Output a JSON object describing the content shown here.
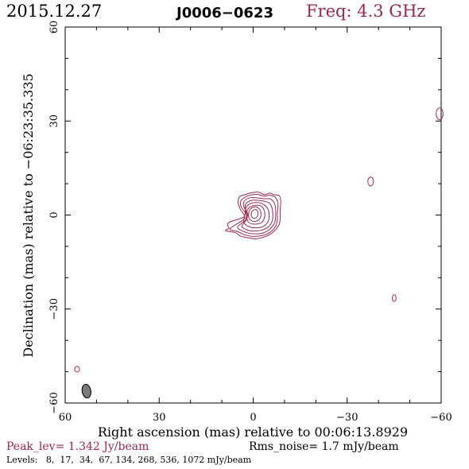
{
  "header": {
    "date": "2015.12.27",
    "source": "J0006−0623",
    "freq": "Freq: 4.3 GHz"
  },
  "footer": {
    "peak": "Peak_lev=  1.342 Jy/beam",
    "rms": "Rms_noise=  1.7 mJy/beam",
    "levels": "Levels:   8,  17,  34,  67, 134, 268, 536, 1072 mJy/beam"
  },
  "colors": {
    "contour": "#a0284a",
    "beam": "#7a7a7a",
    "text": "#000000"
  },
  "chart_data": {
    "type": "contour",
    "xlabel": "Right ascension (mas) relative to 00:06:13.8929",
    "ylabel": "Declination (mas) relative to −06:23:35.335",
    "xlim": [
      60,
      -60
    ],
    "ylim": [
      -60,
      60
    ],
    "xticks": [
      {
        "value": 60,
        "label": "60"
      },
      {
        "value": 30,
        "label": "30"
      },
      {
        "value": 0,
        "label": "0"
      },
      {
        "value": -30,
        "label": "−30"
      },
      {
        "value": -60,
        "label": "−60"
      }
    ],
    "yticks": [
      {
        "value": -60,
        "label": "−60"
      },
      {
        "value": -30,
        "label": "−30"
      },
      {
        "value": 0,
        "label": "0"
      },
      {
        "value": 30,
        "label": "30"
      },
      {
        "value": 60,
        "label": "60"
      }
    ],
    "levels_mJy": [
      8,
      17,
      34,
      67,
      134,
      268,
      536,
      1072
    ],
    "main_component": {
      "center": [
        -0.5,
        0.8
      ],
      "contours": [
        {
          "level": 8,
          "points": [
            [
              8.8,
              -5
            ],
            [
              7.7,
              -4.2
            ],
            [
              8.2,
              -3.2
            ],
            [
              7.6,
              -2.3
            ],
            [
              4.4,
              -1.2
            ],
            [
              2.8,
              -0.3
            ],
            [
              4.1,
              1.8
            ],
            [
              4.8,
              3.9
            ],
            [
              4.3,
              5.9
            ],
            [
              2.6,
              6.5
            ],
            [
              0.6,
              7.1
            ],
            [
              -1.7,
              7.3
            ],
            [
              -3.6,
              6.5
            ],
            [
              -5.3,
              7.0
            ],
            [
              -6.6,
              6.5
            ],
            [
              -8.3,
              6.2
            ],
            [
              -8.8,
              4.4
            ],
            [
              -8.6,
              1.2
            ],
            [
              -8.6,
              -1.2
            ],
            [
              -8.2,
              -3.2
            ],
            [
              -6.3,
              -5.5
            ],
            [
              -4.1,
              -6.8
            ],
            [
              -0.9,
              -7.6
            ],
            [
              1.4,
              -7.3
            ],
            [
              4.1,
              -6.7
            ],
            [
              5.7,
              -5.6
            ]
          ]
        },
        {
          "level": 17,
          "points": [
            [
              7.4,
              -4.4
            ],
            [
              3.4,
              -1.7
            ],
            [
              2.0,
              -0.1
            ],
            [
              3.6,
              2.2
            ],
            [
              4.1,
              4.0
            ],
            [
              3.1,
              5.4
            ],
            [
              1.0,
              6.3
            ],
            [
              -1.3,
              6.6
            ],
            [
              -3.5,
              6.0
            ],
            [
              -5.2,
              6.3
            ],
            [
              -7.1,
              5.6
            ],
            [
              -7.9,
              3.5
            ],
            [
              -7.7,
              0.5
            ],
            [
              -7.7,
              -1.6
            ],
            [
              -7.1,
              -3.7
            ],
            [
              -5.1,
              -5.7
            ],
            [
              -2.6,
              -6.6
            ],
            [
              0.3,
              -6.8
            ],
            [
              2.7,
              -6.3
            ],
            [
              4.9,
              -5.3
            ]
          ]
        },
        {
          "level": 34,
          "points": [
            [
              5.0,
              -3.9
            ],
            [
              2.4,
              -1.6
            ],
            [
              1.8,
              0.5
            ],
            [
              3.0,
              2.7
            ],
            [
              2.8,
              4.5
            ],
            [
              1.0,
              5.5
            ],
            [
              -1.3,
              5.5
            ],
            [
              -3.5,
              5.2
            ],
            [
              -5.6,
              5.1
            ],
            [
              -6.9,
              3.4
            ],
            [
              -7.2,
              0.4
            ],
            [
              -6.9,
              -2.3
            ],
            [
              -5.4,
              -4.4
            ],
            [
              -3.2,
              -5.7
            ],
            [
              -0.4,
              -6.0
            ],
            [
              2.4,
              -5.5
            ]
          ]
        },
        {
          "level": 67,
          "points": [
            [
              3.6,
              -3.5
            ],
            [
              2.0,
              -1.2
            ],
            [
              2.3,
              1.2
            ],
            [
              2.5,
              3.3
            ],
            [
              0.8,
              4.6
            ],
            [
              -1.4,
              4.7
            ],
            [
              -3.5,
              4.4
            ],
            [
              -5.4,
              3.6
            ],
            [
              -6.2,
              1.2
            ],
            [
              -6.1,
              -1.8
            ],
            [
              -4.7,
              -3.9
            ],
            [
              -2.4,
              -4.9
            ],
            [
              0.2,
              -5.1
            ],
            [
              2.3,
              -4.6
            ]
          ]
        },
        {
          "level": 134,
          "points": [
            [
              3.0,
              -2.2
            ],
            [
              2.6,
              0.1
            ],
            [
              2.3,
              2.3
            ],
            [
              1.0,
              3.6
            ],
            [
              -1.1,
              4.0
            ],
            [
              -3.1,
              3.5
            ],
            [
              -4.6,
              2.1
            ],
            [
              -5.1,
              0.0
            ],
            [
              -4.7,
              -2.2
            ],
            [
              -3.1,
              -3.7
            ],
            [
              -0.8,
              -4.1
            ],
            [
              1.6,
              -3.6
            ]
          ]
        },
        {
          "level": 268,
          "points": [
            [
              1.9,
              -1.5
            ],
            [
              2.1,
              0.7
            ],
            [
              1.2,
              2.4
            ],
            [
              -0.7,
              3.1
            ],
            [
              -2.6,
              2.8
            ],
            [
              -3.6,
              1.2
            ],
            [
              -3.6,
              -0.8
            ],
            [
              -2.6,
              -2.5
            ],
            [
              -0.6,
              -2.9
            ],
            [
              1.1,
              -2.6
            ]
          ]
        },
        {
          "level": 536,
          "points": [
            [
              1.4,
              -0.8
            ],
            [
              1.4,
              0.8
            ],
            [
              0.6,
              2.2
            ],
            [
              -0.8,
              2.6
            ],
            [
              -2.1,
              1.8
            ],
            [
              -2.5,
              0.3
            ],
            [
              -2.1,
              -1.2
            ],
            [
              -0.8,
              -2.0
            ],
            [
              0.6,
              -1.8
            ]
          ]
        },
        {
          "level": 1072,
          "points": [
            [
              0.5,
              -0.5
            ],
            [
              0.6,
              0.7
            ],
            [
              0.0,
              1.5
            ],
            [
              -0.9,
              1.7
            ],
            [
              -1.5,
              1.0
            ],
            [
              -1.5,
              0.0
            ],
            [
              -1.0,
              -0.8
            ],
            [
              -0.2,
              -1.0
            ]
          ]
        }
      ]
    },
    "isolated_contours": [
      {
        "level": 8,
        "center": [
          -59.5,
          32.3
        ],
        "rx": 1.1,
        "ry": 1.9
      },
      {
        "level": 8,
        "center": [
          -37.5,
          10.7
        ],
        "rx": 0.9,
        "ry": 1.4
      },
      {
        "level": 8,
        "center": [
          -45,
          -26.5
        ],
        "rx": 0.6,
        "ry": 1.1
      },
      {
        "level": 8,
        "center": [
          56.2,
          -49.2
        ],
        "rx": 0.8,
        "ry": 0.9
      }
    ],
    "beam": {
      "center": [
        53.2,
        -56.2
      ],
      "major_mas": 4.4,
      "minor_mas": 2.8,
      "pa_deg": 10
    }
  }
}
